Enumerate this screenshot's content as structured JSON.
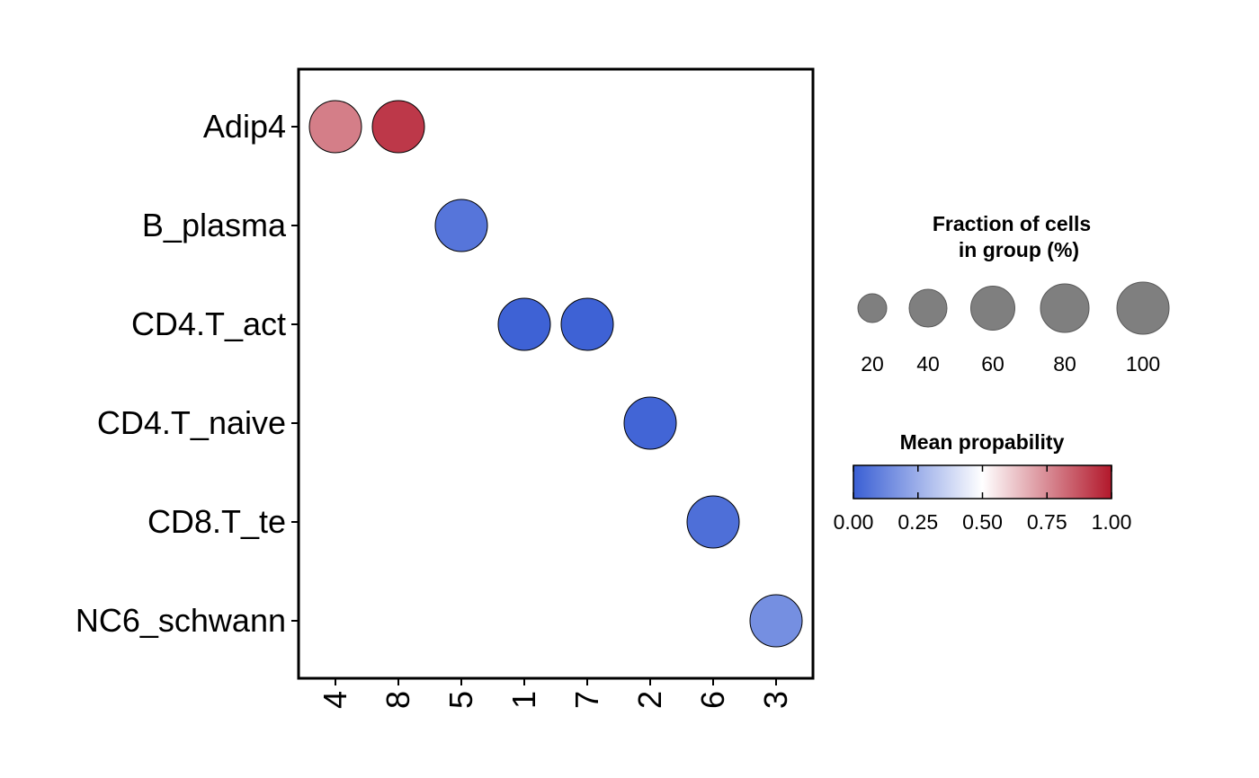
{
  "chart_data": {
    "type": "dot",
    "x_categories": [
      "4",
      "8",
      "5",
      "1",
      "7",
      "2",
      "6",
      "3"
    ],
    "y_categories": [
      "Adip4",
      "B_plasma",
      "CD4.T_act",
      "CD4.T_naive",
      "CD8.T_te",
      "NC6_schwann"
    ],
    "points": [
      {
        "x": "4",
        "y": "Adip4",
        "color_value": 0.78,
        "fraction": 80
      },
      {
        "x": "8",
        "y": "Adip4",
        "color_value": 0.93,
        "fraction": 80
      },
      {
        "x": "5",
        "y": "B_plasma",
        "color_value": 0.07,
        "fraction": 80
      },
      {
        "x": "1",
        "y": "CD4.T_act",
        "color_value": 0.01,
        "fraction": 80
      },
      {
        "x": "7",
        "y": "CD4.T_act",
        "color_value": 0.01,
        "fraction": 80
      },
      {
        "x": "2",
        "y": "CD4.T_naive",
        "color_value": 0.02,
        "fraction": 80
      },
      {
        "x": "6",
        "y": "CD8.T_te",
        "color_value": 0.05,
        "fraction": 80
      },
      {
        "x": "3",
        "y": "NC6_schwann",
        "color_value": 0.15,
        "fraction": 80
      }
    ],
    "size_legend": {
      "title_line1": "Fraction of cells",
      "title_line2": "in group (%)",
      "values": [
        20,
        40,
        60,
        80,
        100
      ],
      "labels": [
        "20",
        "40",
        "60",
        "80",
        "100"
      ],
      "color": "#7f7f7f"
    },
    "color_legend": {
      "title": "Mean propability",
      "ticks": [
        0.0,
        0.25,
        0.5,
        0.75,
        1.0
      ],
      "tick_labels": [
        "0.00",
        "0.25",
        "0.50",
        "0.75",
        "1.00"
      ],
      "range": [
        0,
        1
      ],
      "colors": [
        "#3a5fd4",
        "#ffffff",
        "#b2182b"
      ]
    }
  }
}
